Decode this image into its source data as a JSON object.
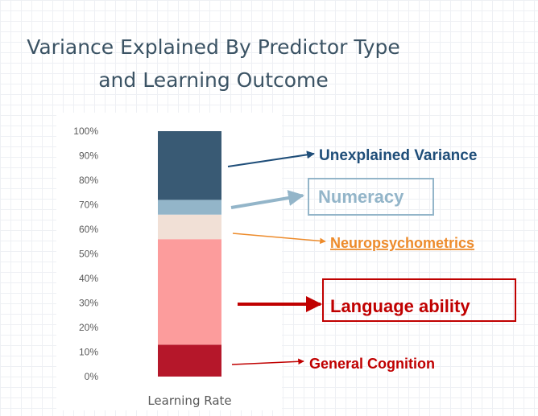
{
  "chart_data": {
    "type": "bar",
    "stacked": true,
    "title": "Variance Explained By Predictor Type\nand Learning Outcome",
    "title_lines": [
      "Variance Explained By Predictor Type",
      "and Learning Outcome"
    ],
    "categories": [
      "Learning Rate"
    ],
    "y_ticks": [
      "0%",
      "10%",
      "20%",
      "30%",
      "40%",
      "50%",
      "60%",
      "70%",
      "80%",
      "90%",
      "100%"
    ],
    "ylim": [
      0,
      100
    ],
    "grid": false,
    "series": [
      {
        "name": "General Cognition",
        "values": [
          13
        ],
        "color": "#b5172a"
      },
      {
        "name": "Language ability",
        "values": [
          43
        ],
        "color": "#fc9c9c"
      },
      {
        "name": "Neuropsychometrics",
        "values": [
          10
        ],
        "color": "#f1e0d6"
      },
      {
        "name": "Numeracy",
        "values": [
          6
        ],
        "color": "#93b5c9"
      },
      {
        "name": "Unexplained Variance",
        "values": [
          28
        ],
        "color": "#395a74"
      }
    ],
    "annotations": {
      "General Cognition": {
        "color": "#c00000",
        "boxed": false
      },
      "Language ability": {
        "color": "#c00000",
        "boxed": true
      },
      "Neuropsychometrics": {
        "color": "#ed8b2b",
        "boxed": false
      },
      "Numeracy": {
        "color": "#93b5c9",
        "boxed": true
      },
      "Unexplained Variance": {
        "color": "#1f4e79",
        "boxed": false
      }
    }
  }
}
